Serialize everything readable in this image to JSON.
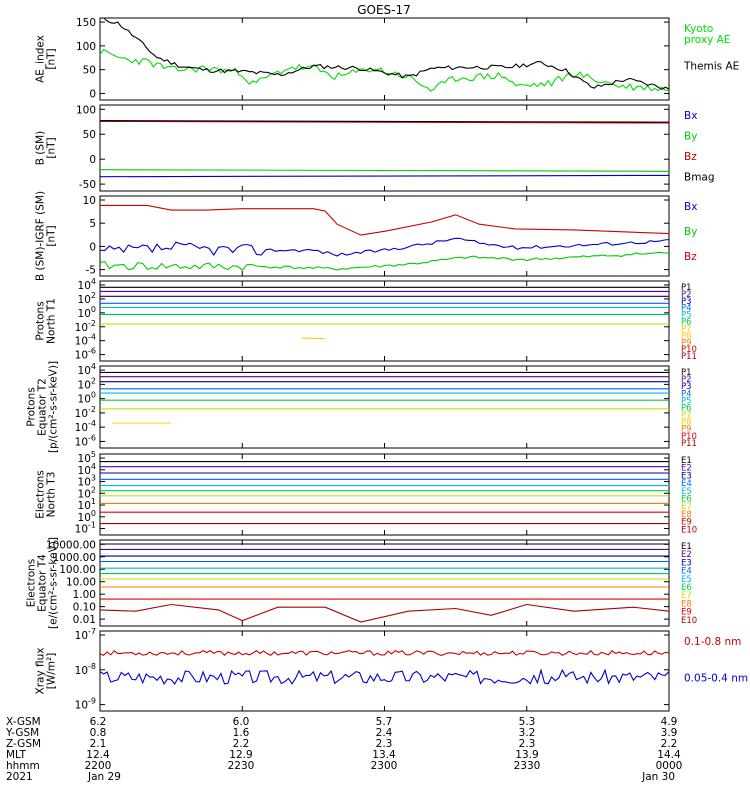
{
  "title": "GOES-17",
  "chart_data": [
    {
      "type": "line",
      "ylabel": [
        "AE_index",
        "[nT]"
      ],
      "yticks": [
        "150",
        "100",
        "50",
        "0"
      ],
      "ylim": [
        0,
        150
      ],
      "xlim": [
        0,
        240
      ],
      "series": [
        {
          "name": "Kyoto proxy AE",
          "label": [
            "Kyoto",
            "proxy AE"
          ],
          "color": "#00dd00",
          "kind": "ae_green"
        },
        {
          "name": "Themis AE",
          "label": [
            "Themis AE"
          ],
          "color": "#000000",
          "kind": "ae_black"
        }
      ]
    },
    {
      "type": "line",
      "ylabel": [
        "B (SM)",
        "[nT]"
      ],
      "yticks": [
        "100",
        "50",
        "0",
        "-50"
      ],
      "ylim": [
        -60,
        150
      ],
      "xlim": [
        0,
        240
      ],
      "series": [
        {
          "name": "Bx",
          "label": [
            "Bx"
          ],
          "color": "#0000cc",
          "values": [
            [
              0,
              -25
            ],
            [
              240,
              -22
            ]
          ]
        },
        {
          "name": "By",
          "label": [
            "By"
          ],
          "color": "#00cc00",
          "values": [
            [
              0,
              -8
            ],
            [
              240,
              -12
            ]
          ]
        },
        {
          "name": "Bz",
          "label": [
            "Bz"
          ],
          "color": "#cc0000",
          "values": [
            [
              0,
              110
            ],
            [
              240,
              106
            ]
          ]
        },
        {
          "name": "Bmag",
          "label": [
            "Bmag"
          ],
          "color": "#000000",
          "values": [
            [
              0,
              112
            ],
            [
              240,
              108
            ]
          ]
        }
      ]
    },
    {
      "type": "line",
      "ylabel": [
        "B (SM)-IGRF (SM)",
        "[nT]"
      ],
      "yticks": [
        "10",
        "5",
        "0",
        "-5"
      ],
      "ylim": [
        -6,
        11
      ],
      "xlim": [
        0,
        240
      ],
      "series": [
        {
          "name": "Bx",
          "label": [
            "Bx"
          ],
          "color": "#0000cc",
          "kind": "igrf_bx"
        },
        {
          "name": "By",
          "label": [
            "By"
          ],
          "color": "#00cc00",
          "kind": "igrf_by"
        },
        {
          "name": "Bz",
          "label": [
            "Bz"
          ],
          "color": "#cc0000",
          "values": [
            [
              0,
              9
            ],
            [
              20,
              9
            ],
            [
              30,
              8
            ],
            [
              45,
              8
            ],
            [
              60,
              8.3
            ],
            [
              90,
              8.3
            ],
            [
              95,
              7.8
            ],
            [
              100,
              5
            ],
            [
              110,
              2.7
            ],
            [
              120,
              3.5
            ],
            [
              140,
              5.5
            ],
            [
              150,
              7
            ],
            [
              160,
              5
            ],
            [
              175,
              4
            ],
            [
              200,
              3.8
            ],
            [
              240,
              3
            ]
          ]
        }
      ]
    },
    {
      "type": "line",
      "ylabel": [
        "Protons",
        "North T1"
      ],
      "yticks": [
        "10^4",
        "10^2",
        "10^0",
        "10^-2",
        "10^-4",
        "10^-6"
      ],
      "ylim": [
        -7,
        4.5
      ],
      "xlim": [
        0,
        240
      ],
      "series": [
        {
          "name": "P1",
          "color": "#000000",
          "values": [
            [
              0,
              3.6
            ],
            [
              240,
              3.6
            ]
          ]
        },
        {
          "name": "P2",
          "color": "#5a0090",
          "values": [
            [
              0,
              3.0
            ],
            [
              240,
              3.0
            ]
          ]
        },
        {
          "name": "P3",
          "color": "#0000a0",
          "values": [
            [
              0,
              2.3
            ],
            [
              240,
              2.3
            ]
          ]
        },
        {
          "name": "P4",
          "color": "#0060ff",
          "values": [
            [
              0,
              1.3
            ],
            [
              240,
              1.3
            ]
          ]
        },
        {
          "name": "P5",
          "color": "#00bbdd",
          "values": [
            [
              0,
              0.7
            ],
            [
              240,
              0.7
            ]
          ]
        },
        {
          "name": "P6",
          "color": "#00cc55",
          "values": [
            [
              0,
              -0.3
            ],
            [
              240,
              -0.3
            ]
          ]
        },
        {
          "name": "P7",
          "color": "#ccdd00",
          "values": [
            [
              0,
              -1.7
            ],
            [
              240,
              -1.7
            ]
          ]
        },
        {
          "name": "P8",
          "color": "#ffcc00",
          "values": [
            [
              85,
              -3.7
            ],
            [
              95,
              -3.8
            ]
          ]
        },
        {
          "name": "P9",
          "color": "#ff7700",
          "values": []
        },
        {
          "name": "P10",
          "color": "#dd0000",
          "values": []
        },
        {
          "name": "P11",
          "color": "#aa0000",
          "values": []
        }
      ]
    },
    {
      "type": "line",
      "ylabel": [
        "Protons",
        "Equator T2",
        "[p/(cm²-s-sr-keV)]"
      ],
      "yticks": [
        "10^4",
        "10^2",
        "10^0",
        "10^-2",
        "10^-4",
        "10^-6"
      ],
      "ylim": [
        -7,
        4.5
      ],
      "xlim": [
        0,
        240
      ],
      "series": [
        {
          "name": "P1",
          "color": "#000000",
          "values": [
            [
              0,
              3.6
            ],
            [
              240,
              3.6
            ]
          ]
        },
        {
          "name": "P2",
          "color": "#5a0090",
          "values": [
            [
              0,
              3.0
            ],
            [
              240,
              3.0
            ]
          ]
        },
        {
          "name": "P3",
          "color": "#0000a0",
          "values": [
            [
              0,
              2.3
            ],
            [
              240,
              2.3
            ]
          ]
        },
        {
          "name": "P4",
          "color": "#0060ff",
          "values": [
            [
              0,
              1.3
            ],
            [
              240,
              1.3
            ]
          ]
        },
        {
          "name": "P5",
          "color": "#00bbdd",
          "values": [
            [
              0,
              0.7
            ],
            [
              240,
              0.7
            ]
          ]
        },
        {
          "name": "P6",
          "color": "#00cc55",
          "values": [
            [
              0,
              -0.3
            ],
            [
              240,
              -0.3
            ]
          ]
        },
        {
          "name": "P7",
          "color": "#ccdd00",
          "values": [
            [
              0,
              -1.5
            ],
            [
              240,
              -1.5
            ]
          ]
        },
        {
          "name": "P8",
          "color": "#ffcc00",
          "values": [
            [
              5,
              -3.5
            ],
            [
              30,
              -3.5
            ]
          ]
        },
        {
          "name": "P9",
          "color": "#ff7700",
          "values": []
        },
        {
          "name": "P10",
          "color": "#dd0000",
          "values": []
        },
        {
          "name": "P11",
          "color": "#aa0000",
          "values": []
        }
      ]
    },
    {
      "type": "line",
      "ylabel": [
        "Electrons",
        "North T3"
      ],
      "yticks": [
        "10^5",
        "10^4",
        "10^3",
        "10^2",
        "10^1",
        "10^0",
        "10^-1"
      ],
      "ylim": [
        -1.2,
        5.2
      ],
      "xlim": [
        0,
        240
      ],
      "series": [
        {
          "name": "E1",
          "color": "#000000",
          "values": [
            [
              0,
              4.6
            ],
            [
              240,
              4.6
            ]
          ]
        },
        {
          "name": "E2",
          "color": "#5a0090",
          "values": [
            [
              0,
              4.2
            ],
            [
              240,
              4.2
            ]
          ]
        },
        {
          "name": "E3",
          "color": "#0000a0",
          "values": [
            [
              0,
              3.7
            ],
            [
              240,
              3.7
            ]
          ]
        },
        {
          "name": "E4",
          "color": "#0060ff",
          "values": [
            [
              0,
              3.2
            ],
            [
              240,
              3.2
            ]
          ]
        },
        {
          "name": "E5",
          "color": "#00bbdd",
          "values": [
            [
              0,
              2.7
            ],
            [
              240,
              2.7
            ]
          ]
        },
        {
          "name": "E6",
          "color": "#00cc55",
          "values": [
            [
              0,
              2.3
            ],
            [
              240,
              2.3
            ]
          ]
        },
        {
          "name": "E7",
          "color": "#ccdd00",
          "values": [
            [
              0,
              1.9
            ],
            [
              240,
              1.9
            ]
          ]
        },
        {
          "name": "E8",
          "color": "#ff7700",
          "values": [
            [
              0,
              1.3
            ],
            [
              240,
              1.3
            ]
          ]
        },
        {
          "name": "E9",
          "color": "#dd0000",
          "values": [
            [
              0,
              0.6
            ],
            [
              240,
              0.6
            ]
          ]
        },
        {
          "name": "E10",
          "color": "#aa0000",
          "values": [
            [
              0,
              -0.3
            ],
            [
              240,
              -0.3
            ]
          ]
        }
      ]
    },
    {
      "type": "line",
      "ylabel": [
        "Electrons",
        "Equator T4",
        "[e/(cm²-s-sr-keV)]"
      ],
      "yticks": [
        "10000.00",
        "1000.00",
        "100.00",
        "10.00",
        "1.00",
        "0.10",
        "0.01"
      ],
      "ylim": [
        -2.2,
        4.2
      ],
      "xlim": [
        0,
        240
      ],
      "series": [
        {
          "name": "E1",
          "color": "#000000",
          "values": [
            [
              0,
              3.9
            ],
            [
              240,
              3.9
            ]
          ]
        },
        {
          "name": "E2",
          "color": "#5a0090",
          "values": [
            [
              0,
              3.5
            ],
            [
              240,
              3.5
            ]
          ]
        },
        {
          "name": "E3",
          "color": "#0000a0",
          "values": [
            [
              0,
              3.0
            ],
            [
              240,
              3.0
            ]
          ]
        },
        {
          "name": "E4",
          "color": "#0060ff",
          "values": [
            [
              0,
              2.6
            ],
            [
              240,
              2.6
            ]
          ]
        },
        {
          "name": "E5",
          "color": "#00bbdd",
          "values": [
            [
              0,
              2.1
            ],
            [
              240,
              2.1
            ]
          ]
        },
        {
          "name": "E6",
          "color": "#00cc55",
          "values": [
            [
              0,
              1.7
            ],
            [
              240,
              1.7
            ]
          ]
        },
        {
          "name": "E7",
          "color": "#ccdd00",
          "values": [
            [
              0,
              1.3
            ],
            [
              240,
              1.3
            ]
          ]
        },
        {
          "name": "E8",
          "color": "#ff7700",
          "values": [
            [
              0,
              0.7
            ],
            [
              240,
              0.7
            ]
          ]
        },
        {
          "name": "E9",
          "color": "#dd0000",
          "values": [
            [
              0,
              -0.2
            ],
            [
              240,
              -0.2
            ]
          ]
        },
        {
          "name": "E10",
          "color": "#aa0000",
          "values": [
            [
              0,
              -1.0
            ],
            [
              15,
              -1.1
            ],
            [
              30,
              -0.6
            ],
            [
              50,
              -1.0
            ],
            [
              60,
              -1.8
            ],
            [
              75,
              -0.8
            ],
            [
              95,
              -0.8
            ],
            [
              110,
              -1.9
            ],
            [
              130,
              -1.1
            ],
            [
              150,
              -0.9
            ],
            [
              165,
              -1.4
            ],
            [
              180,
              -0.6
            ],
            [
              200,
              -1.1
            ],
            [
              225,
              -0.8
            ],
            [
              240,
              -1.1
            ]
          ]
        }
      ]
    },
    {
      "type": "line",
      "ylabel": [
        "Xray flux",
        "[W/m²]"
      ],
      "yticks": [
        "10^-7",
        "10^-8",
        "10^-9"
      ],
      "ylim": [
        -9,
        -7
      ],
      "xlim": [
        0,
        240
      ],
      "series": [
        {
          "name": "0.1-0.8 nm",
          "label": [
            "0.1-0.8 nm"
          ],
          "color": "#cc0000",
          "kind": "xray_long"
        },
        {
          "name": "0.05-0.4 nm",
          "label": [
            "0.05-0.4 nm"
          ],
          "color": "#0000cc",
          "kind": "xray_short"
        }
      ]
    }
  ],
  "p_labels": [
    {
      "t": "P1",
      "c": "#000000"
    },
    {
      "t": "P2",
      "c": "#5a0090"
    },
    {
      "t": "P3",
      "c": "#0000a0"
    },
    {
      "t": "P4",
      "c": "#0060ff"
    },
    {
      "t": "P5",
      "c": "#00bbdd"
    },
    {
      "t": "P6",
      "c": "#00cc55"
    },
    {
      "t": "P7",
      "c": "#ccdd00"
    },
    {
      "t": "P8",
      "c": "#ffcc00"
    },
    {
      "t": "P9",
      "c": "#ff7700"
    },
    {
      "t": "P10",
      "c": "#dd0000"
    },
    {
      "t": "P11",
      "c": "#aa0000"
    }
  ],
  "e_labels": [
    {
      "t": "E1",
      "c": "#000000"
    },
    {
      "t": "E2",
      "c": "#5a0090"
    },
    {
      "t": "E3",
      "c": "#0000a0"
    },
    {
      "t": "E4",
      "c": "#0060ff"
    },
    {
      "t": "E5",
      "c": "#00bbdd"
    },
    {
      "t": "E6",
      "c": "#00cc55"
    },
    {
      "t": "E7",
      "c": "#ccdd00"
    },
    {
      "t": "E8",
      "c": "#ff7700"
    },
    {
      "t": "E9",
      "c": "#dd0000"
    },
    {
      "t": "E10",
      "c": "#aa0000"
    }
  ],
  "footer": {
    "row_labels": [
      "X-GSM",
      "Y-GSM",
      "Z-GSM",
      "MLT",
      "hhmm",
      "2021"
    ],
    "columns": [
      [
        "6.2",
        "0.8",
        "2.1",
        "12.4",
        "2200",
        "Jan 29"
      ],
      [
        "6.0",
        "1.6",
        "2.2",
        "12.9",
        "2230",
        ""
      ],
      [
        "5.7",
        "2.4",
        "2.3",
        "13.4",
        "2300",
        ""
      ],
      [
        "5.3",
        "3.2",
        "2.3",
        "13.9",
        "2330",
        ""
      ],
      [
        "4.9",
        "3.9",
        "2.2",
        "14.4",
        "0000",
        "Jan 30"
      ]
    ]
  }
}
